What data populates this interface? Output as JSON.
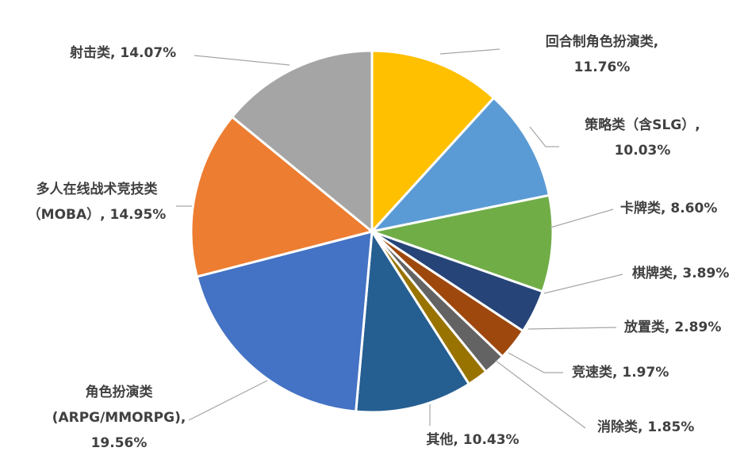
{
  "chart_data": {
    "type": "pie",
    "title": "",
    "start_angle_deg": 0,
    "direction": "clockwise",
    "slices": [
      {
        "name": "回合制角色扮演类",
        "value": 11.76,
        "value_label": "11.76%",
        "color": "#FFC000"
      },
      {
        "name": "策略类（含SLG）",
        "value": 10.03,
        "value_label": "10.03%",
        "color": "#5B9BD5"
      },
      {
        "name": "卡牌类",
        "value": 8.6,
        "value_label": "8.60%",
        "color": "#70AD47"
      },
      {
        "name": "棋牌类",
        "value": 3.89,
        "value_label": "3.89%",
        "color": "#264478"
      },
      {
        "name": "放置类",
        "value": 2.89,
        "value_label": "2.89%",
        "color": "#9E480E"
      },
      {
        "name": "竞速类",
        "value": 1.97,
        "value_label": "1.97%",
        "color": "#636363"
      },
      {
        "name": "消除类",
        "value": 1.85,
        "value_label": "1.85%",
        "color": "#997300"
      },
      {
        "name": "其他",
        "value": 10.43,
        "value_label": "10.43%",
        "color": "#255E91"
      },
      {
        "name": "角色扮演类(ARPG/MMORPG)",
        "value": 19.56,
        "value_label": "19.56%",
        "color": "#4472C4"
      },
      {
        "name": "多人在线战术竞技类（MOBA）",
        "value": 14.95,
        "value_label": "14.95%",
        "color": "#ED7D31"
      },
      {
        "name": "射击类",
        "value": 14.07,
        "value_label": "14.07%",
        "color": "#A5A5A5"
      }
    ],
    "labels": [
      {
        "lines": [
          "回合制角色扮演类,",
          "11.76%"
        ]
      },
      {
        "lines": [
          "策略类（含SLG）,",
          "10.03%"
        ]
      },
      {
        "lines": [
          "卡牌类, 8.60%"
        ]
      },
      {
        "lines": [
          "棋牌类, 3.89%"
        ]
      },
      {
        "lines": [
          "放置类, 2.89%"
        ]
      },
      {
        "lines": [
          "竞速类, 1.97%"
        ]
      },
      {
        "lines": [
          "消除类, 1.85%"
        ]
      },
      {
        "lines": [
          "其他, 10.43%"
        ]
      },
      {
        "lines": [
          "角色扮演类",
          "(ARPG/MMORPG),",
          "19.56%"
        ]
      },
      {
        "lines": [
          "多人在线战术竞技类",
          "（MOBA）, 14.95%"
        ]
      },
      {
        "lines": [
          "射击类, 14.07%"
        ]
      }
    ],
    "leader_line_color": "#A6A6A6",
    "label_color": "#404040",
    "legend": "none"
  }
}
